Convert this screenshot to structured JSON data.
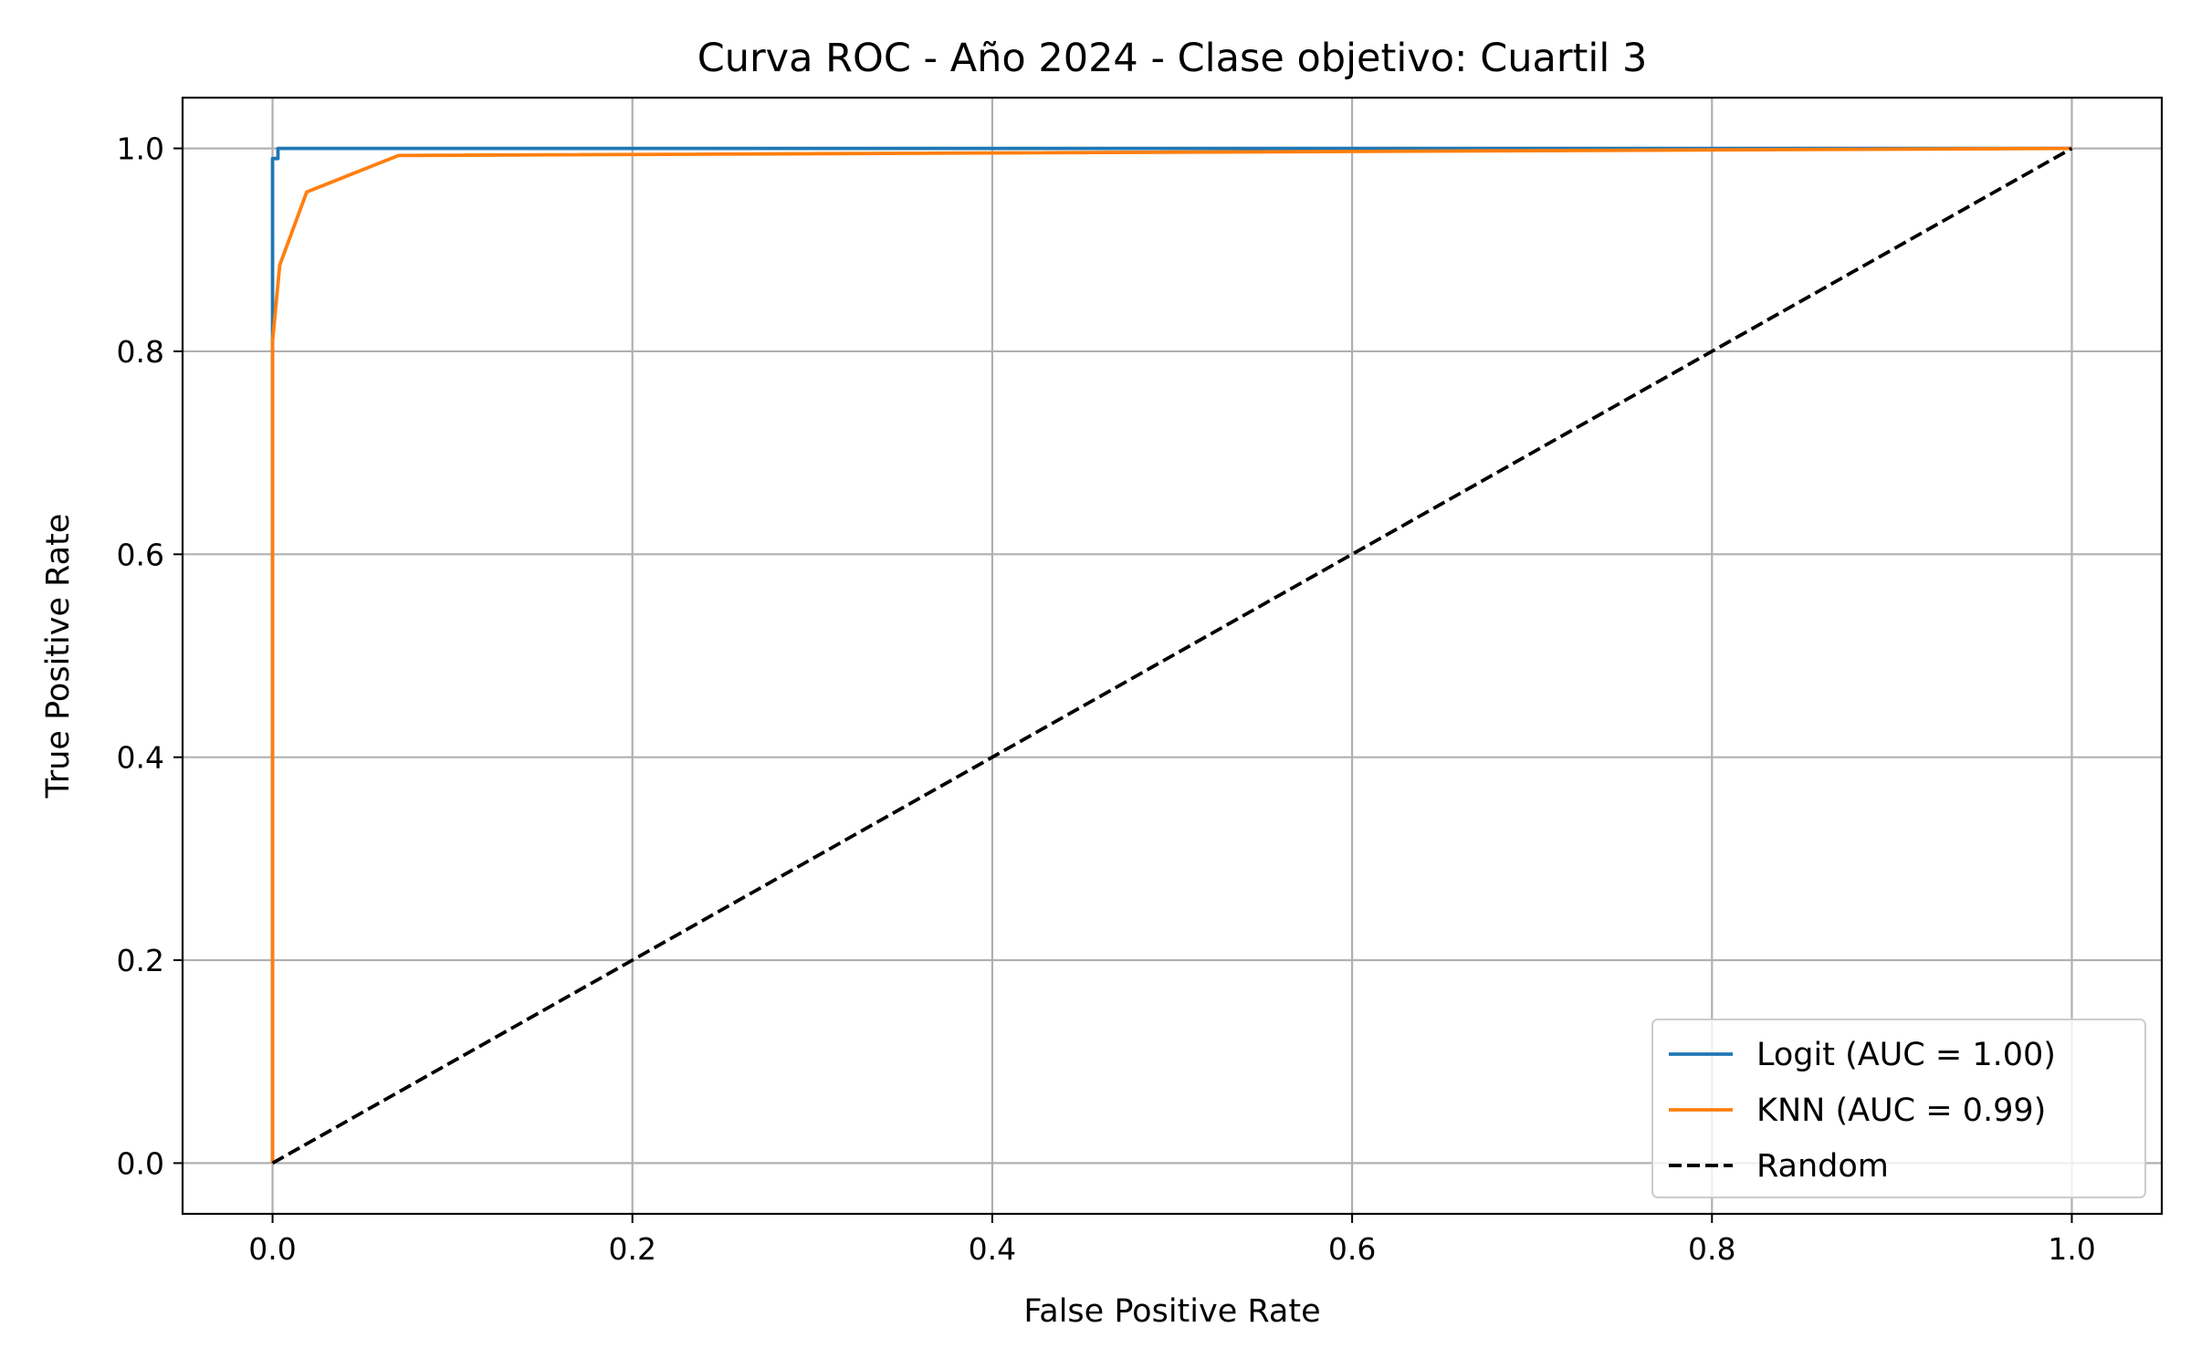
{
  "chart_data": {
    "type": "line",
    "title": "Curva ROC - Año 2024 - Clase objetivo: Cuartil 3",
    "xlabel": "False Positive Rate",
    "ylabel": "True Positive Rate",
    "xlim": [
      -0.05,
      1.05
    ],
    "ylim": [
      -0.05,
      1.05
    ],
    "xticks": [
      0.0,
      0.2,
      0.4,
      0.6,
      0.8,
      1.0
    ],
    "yticks": [
      0.0,
      0.2,
      0.4,
      0.6,
      0.8,
      1.0
    ],
    "xtick_labels": [
      "0.0",
      "0.2",
      "0.4",
      "0.6",
      "0.8",
      "1.0"
    ],
    "ytick_labels": [
      "0.0",
      "0.2",
      "0.4",
      "0.6",
      "0.8",
      "1.0"
    ],
    "grid": true,
    "legend_position": "lower-right",
    "series": [
      {
        "name": "Logit (AUC = 1.00)",
        "color": "#1f77b4",
        "style": "solid",
        "x": [
          0.0,
          0.0,
          0.0,
          0.003,
          0.003,
          1.0
        ],
        "y": [
          0.0,
          0.82,
          0.99,
          0.99,
          1.0,
          1.0
        ]
      },
      {
        "name": "KNN (AUC = 0.99)",
        "color": "#ff7f0e",
        "style": "solid",
        "x": [
          0.0,
          0.0,
          0.004,
          0.019,
          0.07,
          1.0
        ],
        "y": [
          0.0,
          0.81,
          0.885,
          0.957,
          0.993,
          1.0
        ]
      },
      {
        "name": "Random",
        "color": "#000000",
        "style": "dashed",
        "x": [
          0.0,
          1.0
        ],
        "y": [
          0.0,
          1.0
        ]
      }
    ]
  }
}
